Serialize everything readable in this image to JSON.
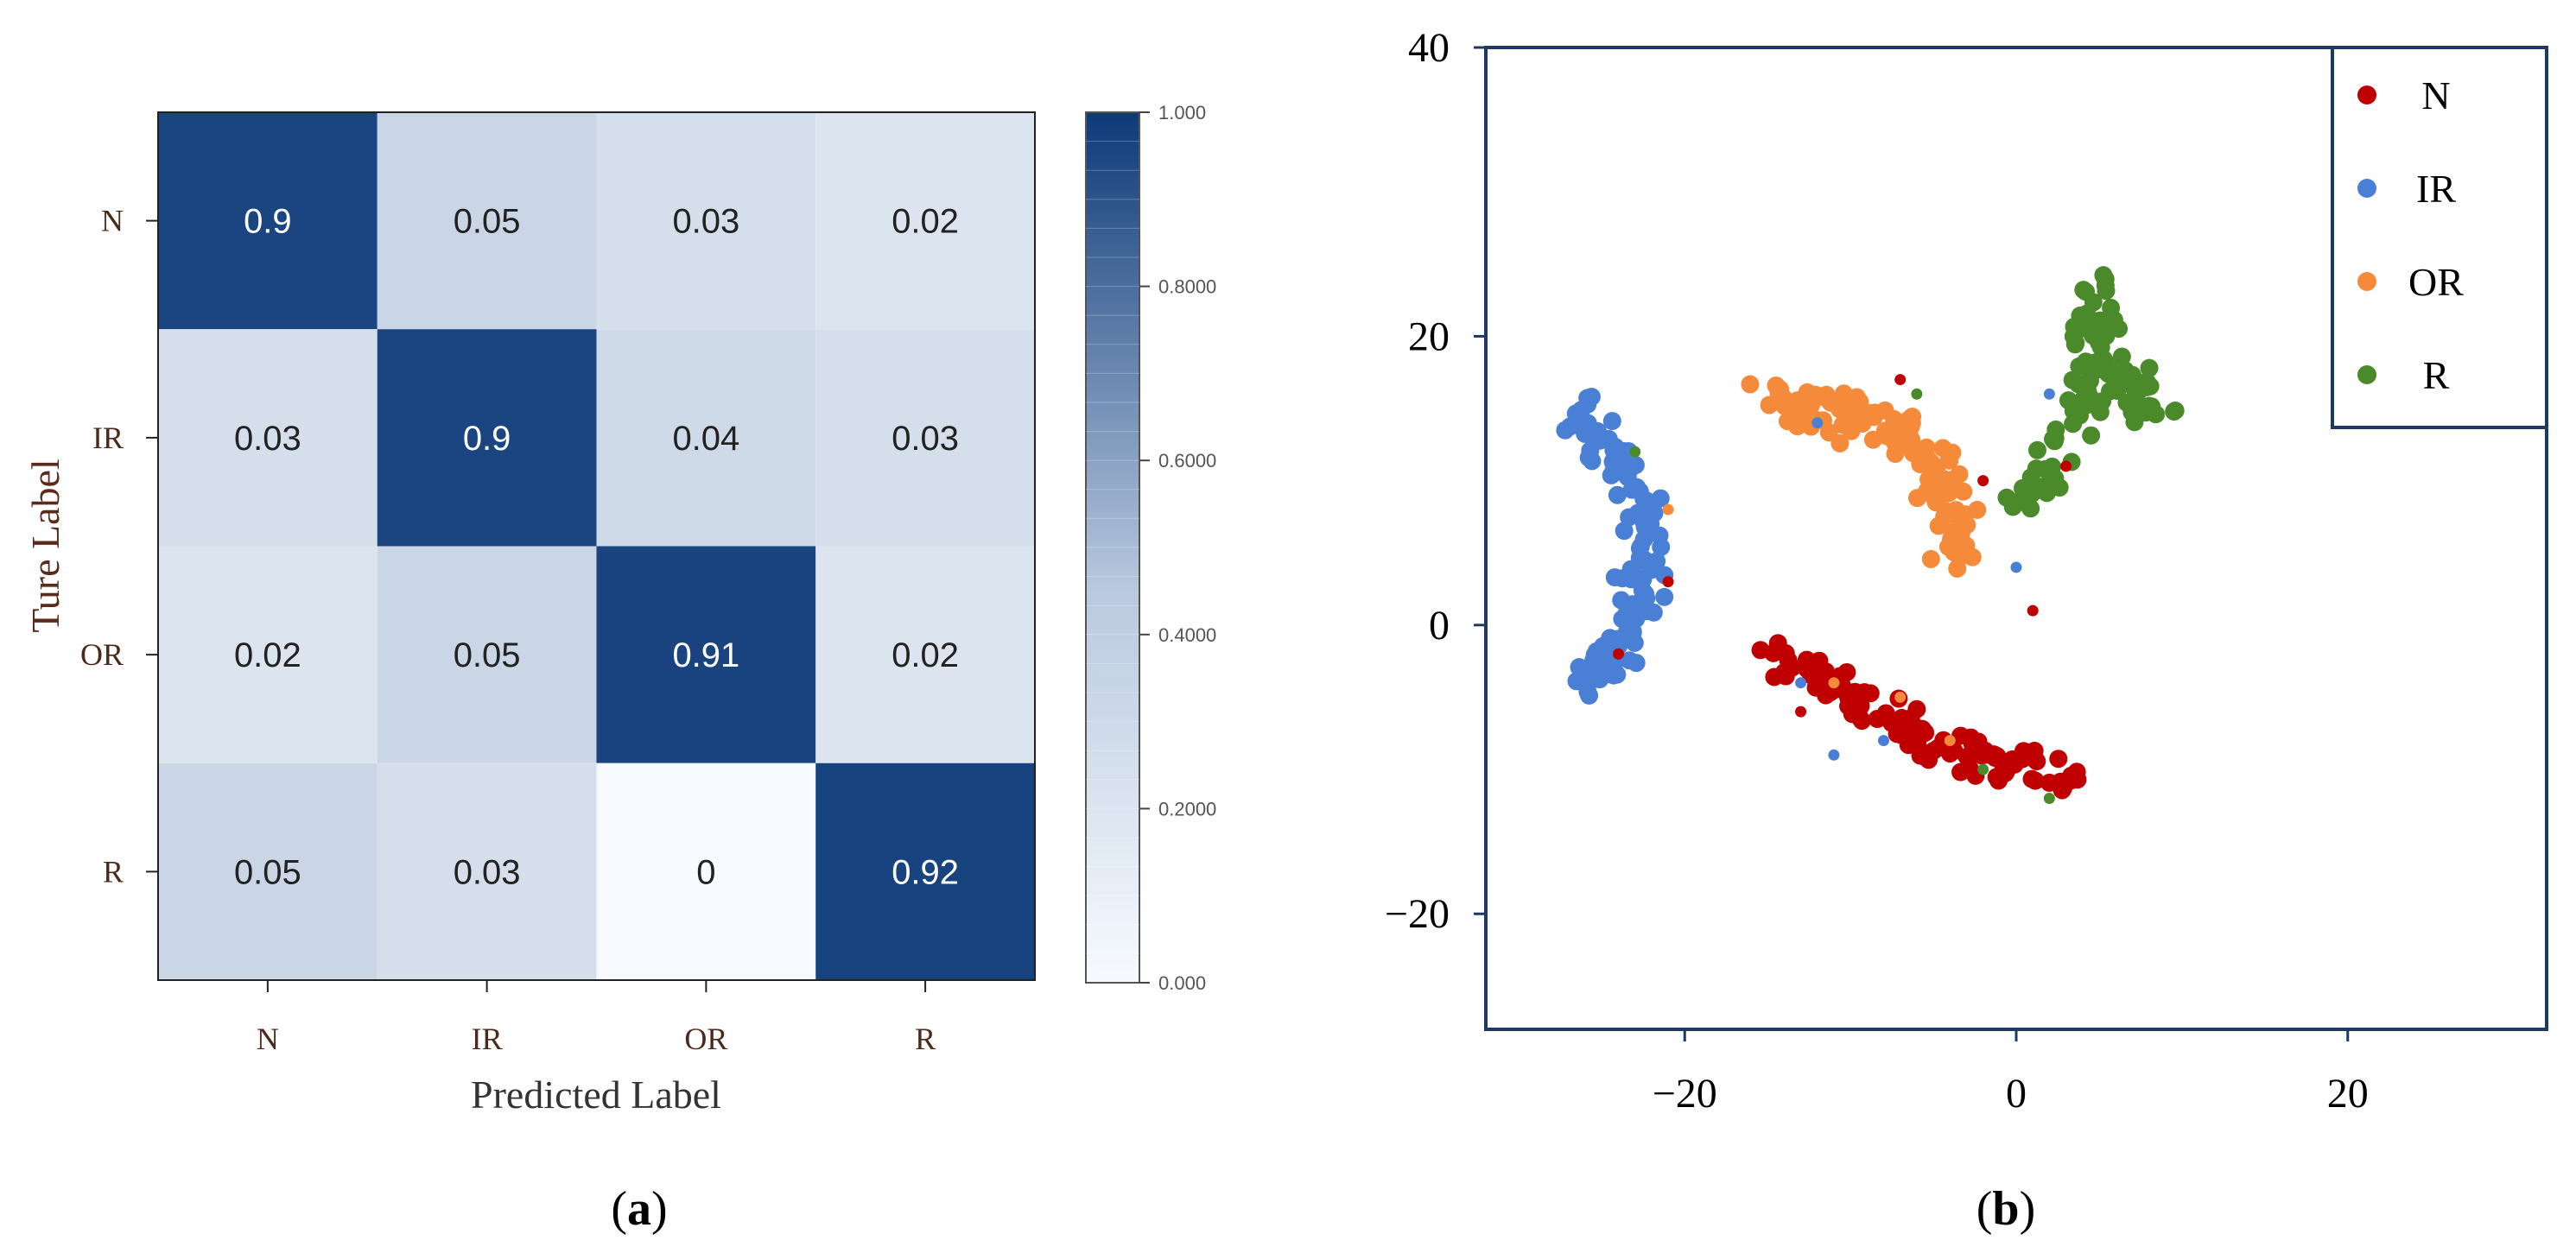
{
  "panels": {
    "a": {
      "label_open": "(",
      "label_letter": "a",
      "label_close": ")"
    },
    "b": {
      "label_open": "(",
      "label_letter": "b",
      "label_close": ")"
    }
  },
  "colors": {
    "heat_high": "#0d3a78",
    "heat_low": "#f7fbff",
    "N": "#c00000",
    "IR": "#4a7fd6",
    "OR": "#f58b3a",
    "R": "#4a8a2a",
    "frame": "#1f3864"
  },
  "chart_data": [
    {
      "type": "heatmap",
      "title": "",
      "xlabel": "Predicted Label",
      "ylabel": "Ture Label",
      "x_categories": [
        "N",
        "IR",
        "OR",
        "R"
      ],
      "y_categories": [
        "N",
        "IR",
        "OR",
        "R"
      ],
      "values": [
        [
          0.9,
          0.05,
          0.03,
          0.02
        ],
        [
          0.03,
          0.9,
          0.04,
          0.03
        ],
        [
          0.02,
          0.05,
          0.91,
          0.02
        ],
        [
          0.05,
          0.03,
          0,
          0.92
        ]
      ],
      "value_labels": [
        [
          "0.9",
          "0.05",
          "0.03",
          "0.02"
        ],
        [
          "0.03",
          "0.9",
          "0.04",
          "0.03"
        ],
        [
          "0.02",
          "0.05",
          "0.91",
          "0.02"
        ],
        [
          "0.05",
          "0.03",
          "0",
          "0.92"
        ]
      ],
      "colorbar": {
        "range": [
          0,
          1
        ],
        "ticks": [
          {
            "value": 1.0,
            "label": "1.000"
          },
          {
            "value": 0.8,
            "label": "0.8000"
          },
          {
            "value": 0.6,
            "label": "0.6000"
          },
          {
            "value": 0.4,
            "label": "0.4000"
          },
          {
            "value": 0.2,
            "label": "0.2000"
          },
          {
            "value": 0.0,
            "label": "0.000"
          }
        ]
      }
    },
    {
      "type": "scatter",
      "title": "",
      "xlabel": "",
      "ylabel": "",
      "xlim": [
        -32,
        32
      ],
      "ylim": [
        -28,
        40
      ],
      "xticks": [
        {
          "value": -20,
          "label": "−20"
        },
        {
          "value": 0,
          "label": "0"
        },
        {
          "value": 20,
          "label": "20"
        }
      ],
      "yticks": [
        {
          "value": 40,
          "label": "40"
        },
        {
          "value": 20,
          "label": "20"
        },
        {
          "value": 0,
          "label": "0"
        },
        {
          "value": -20,
          "label": "−20"
        }
      ],
      "legend_position": "top-right",
      "legend": [
        "N",
        "IR",
        "OR",
        "R"
      ],
      "clusters": [
        {
          "name": "N",
          "n": 110,
          "segments": [
            [
              -15.5,
              -1.5,
              -8,
              -6
            ],
            [
              -8,
              -6,
              -4.5,
              -8.5
            ],
            [
              -4.5,
              -8.5,
              4,
              -11
            ]
          ],
          "spread": 1.3
        },
        {
          "name": "IR",
          "n": 130,
          "segments": [
            [
              -26.5,
              15,
              -22.5,
              9
            ],
            [
              -22.5,
              9,
              -22,
              3
            ],
            [
              -22,
              3,
              -24,
              -1.5
            ],
            [
              -24,
              -1.5,
              -26,
              -4.5
            ]
          ],
          "spread": 1.1
        },
        {
          "name": "OR",
          "n": 120,
          "segments": [
            [
              -15,
              16,
              -7.5,
              14
            ],
            [
              -7.5,
              14,
              -5,
              11
            ],
            [
              -5,
              11,
              -3.5,
              5
            ]
          ],
          "spread": 1.3
        },
        {
          "name": "R",
          "n": 110,
          "segments": [
            [
              0.5,
              8,
              3,
              13
            ],
            [
              3,
              13,
              4.5,
              19
            ],
            [
              4.5,
              19,
              5,
              24
            ],
            [
              4.5,
              19,
              8.5,
              14.5
            ]
          ],
          "spread": 1.2
        }
      ],
      "outliers": [
        {
          "name": "N",
          "points": [
            [
              -24,
              -2
            ],
            [
              -21,
              3
            ],
            [
              3,
              11
            ],
            [
              -2,
              10
            ],
            [
              1,
              1
            ],
            [
              -7,
              17
            ],
            [
              -13,
              -6
            ]
          ]
        },
        {
          "name": "IR",
          "points": [
            [
              -12,
              14
            ],
            [
              -8,
              -8
            ],
            [
              0,
              4
            ],
            [
              2,
              16
            ],
            [
              -13,
              -4
            ],
            [
              -11,
              -9
            ]
          ]
        },
        {
          "name": "OR",
          "points": [
            [
              -21,
              8
            ],
            [
              -11,
              -4
            ],
            [
              -7,
              -5
            ],
            [
              -4,
              -8
            ]
          ]
        },
        {
          "name": "R",
          "points": [
            [
              -23,
              12
            ],
            [
              -6,
              16
            ],
            [
              -2,
              -10
            ],
            [
              8,
              17
            ],
            [
              2,
              -12
            ]
          ]
        }
      ]
    }
  ]
}
